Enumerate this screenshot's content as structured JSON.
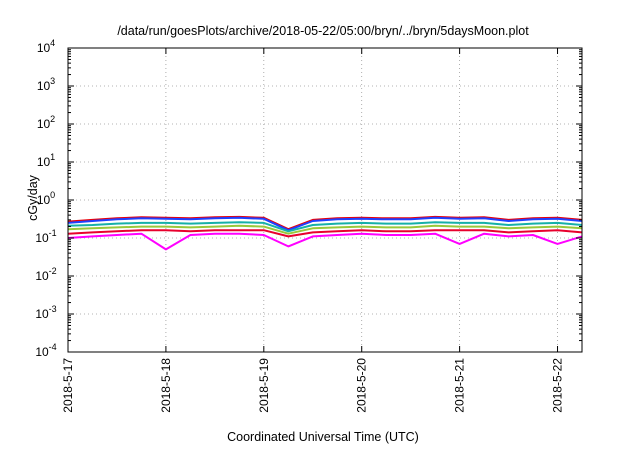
{
  "chart_data": {
    "type": "line",
    "title": "/data/run/goesPlots/archive/2018-05-22/05:00/bryn/../bryn/5daysMoon.plot",
    "xlabel": "Coordinated Universal Time (UTC)",
    "ylabel": "cGy/day",
    "yscale": "log",
    "ylim": [
      0.0001,
      10000
    ],
    "xlim": [
      "2018-05-17",
      "2018-05-22 06:00"
    ],
    "grid": true,
    "legend": "none",
    "x_ticks": [
      {
        "x": "2018-05-17",
        "label": "2018-5-17"
      },
      {
        "x": "2018-05-18",
        "label": "2018-5-18"
      },
      {
        "x": "2018-05-19",
        "label": "2018-5-19"
      },
      {
        "x": "2018-05-20",
        "label": "2018-5-20"
      },
      {
        "x": "2018-05-21",
        "label": "2018-5-21"
      },
      {
        "x": "2018-05-22",
        "label": "2018-5-22"
      }
    ],
    "y_ticks": [
      {
        "y": 0.0001,
        "base": "10",
        "exp": "-4"
      },
      {
        "y": 0.001,
        "base": "10",
        "exp": "-3"
      },
      {
        "y": 0.01,
        "base": "10",
        "exp": "-2"
      },
      {
        "y": 0.1,
        "base": "10",
        "exp": "-1"
      },
      {
        "y": 1,
        "base": "10",
        "exp": "0"
      },
      {
        "y": 10,
        "base": "10",
        "exp": "1"
      },
      {
        "y": 100,
        "base": "10",
        "exp": "2"
      },
      {
        "y": 1000,
        "base": "10",
        "exp": "3"
      },
      {
        "y": 10000,
        "base": "10",
        "exp": "4"
      }
    ],
    "x": [
      "2018-05-17 00:00",
      "2018-05-17 06:00",
      "2018-05-17 12:00",
      "2018-05-17 18:00",
      "2018-05-18 00:00",
      "2018-05-18 06:00",
      "2018-05-18 12:00",
      "2018-05-18 18:00",
      "2018-05-19 00:00",
      "2018-05-19 06:00",
      "2018-05-19 12:00",
      "2018-05-19 18:00",
      "2018-05-20 00:00",
      "2018-05-20 06:00",
      "2018-05-20 12:00",
      "2018-05-20 18:00",
      "2018-05-21 00:00",
      "2018-05-21 06:00",
      "2018-05-21 12:00",
      "2018-05-21 18:00",
      "2018-05-22 00:00",
      "2018-05-22 06:00"
    ],
    "series": [
      {
        "color": "#e8000b",
        "values": [
          0.27,
          0.3,
          0.33,
          0.35,
          0.34,
          0.33,
          0.35,
          0.36,
          0.34,
          0.17,
          0.3,
          0.33,
          0.34,
          0.33,
          0.33,
          0.36,
          0.34,
          0.35,
          0.3,
          0.33,
          0.34,
          0.3
        ]
      },
      {
        "color": "#1f3fff",
        "values": [
          0.25,
          0.28,
          0.31,
          0.33,
          0.32,
          0.31,
          0.33,
          0.34,
          0.32,
          0.16,
          0.28,
          0.31,
          0.32,
          0.31,
          0.31,
          0.34,
          0.32,
          0.33,
          0.28,
          0.31,
          0.32,
          0.28
        ]
      },
      {
        "color": "#16b0a8",
        "values": [
          0.21,
          0.22,
          0.24,
          0.25,
          0.25,
          0.24,
          0.25,
          0.26,
          0.25,
          0.15,
          0.22,
          0.24,
          0.25,
          0.24,
          0.24,
          0.26,
          0.25,
          0.25,
          0.22,
          0.24,
          0.25,
          0.22
        ]
      },
      {
        "color": "#9ac83a",
        "values": [
          0.17,
          0.18,
          0.19,
          0.2,
          0.2,
          0.19,
          0.2,
          0.21,
          0.2,
          0.13,
          0.18,
          0.19,
          0.2,
          0.19,
          0.19,
          0.21,
          0.2,
          0.2,
          0.18,
          0.19,
          0.2,
          0.18
        ]
      },
      {
        "color": "#e8002d",
        "values": [
          0.13,
          0.14,
          0.15,
          0.16,
          0.16,
          0.15,
          0.16,
          0.16,
          0.16,
          0.11,
          0.14,
          0.15,
          0.16,
          0.15,
          0.15,
          0.16,
          0.16,
          0.16,
          0.14,
          0.15,
          0.16,
          0.14
        ]
      },
      {
        "color": "#ff00ff",
        "values": [
          0.1,
          0.11,
          0.12,
          0.13,
          0.05,
          0.12,
          0.13,
          0.13,
          0.12,
          0.06,
          0.11,
          0.12,
          0.13,
          0.12,
          0.12,
          0.13,
          0.07,
          0.13,
          0.11,
          0.12,
          0.07,
          0.11
        ]
      }
    ]
  }
}
